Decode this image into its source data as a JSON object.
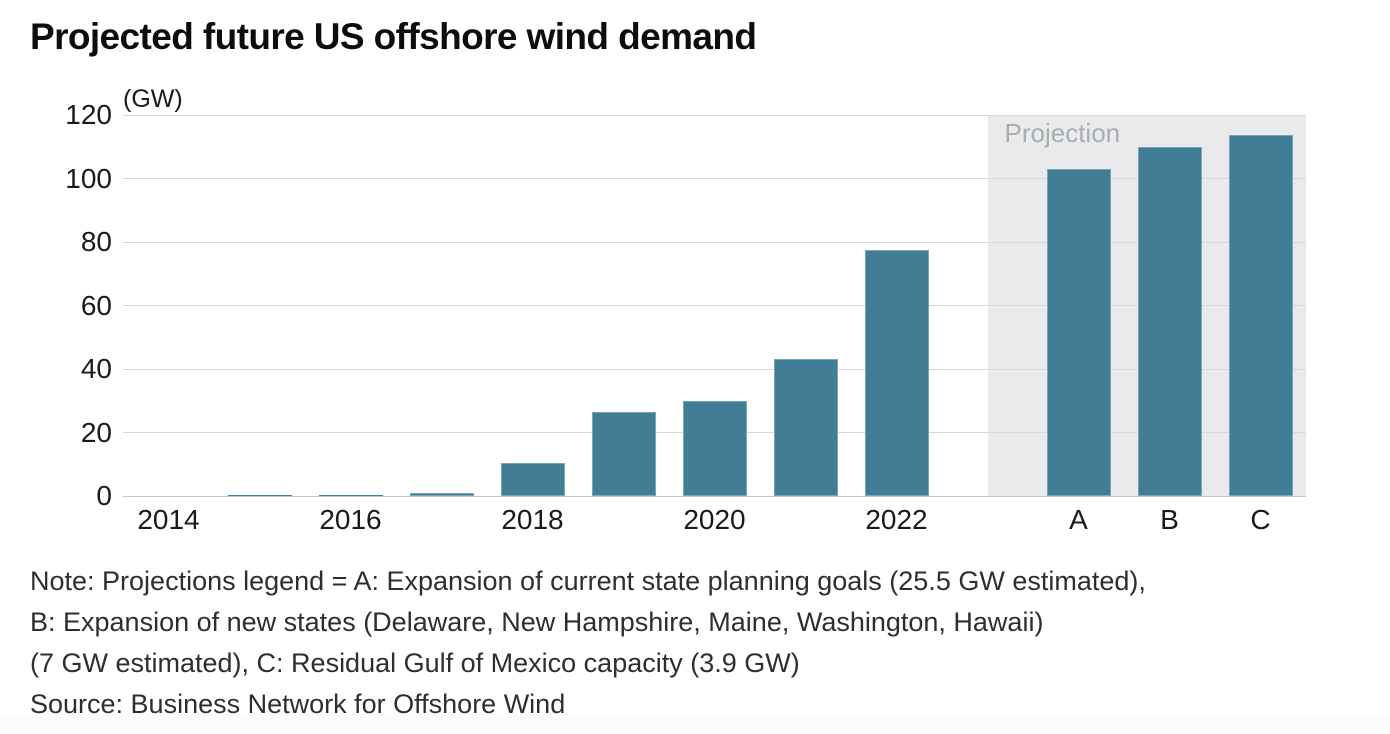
{
  "chart_data": {
    "type": "bar",
    "title": "Projected future US offshore wind demand",
    "unit_label": "(GW)",
    "xlabel": "",
    "ylabel": "GW",
    "ylim": [
      0,
      120
    ],
    "yticks": [
      0,
      20,
      40,
      60,
      80,
      100,
      120
    ],
    "grid": true,
    "categories": [
      "2014",
      "2015",
      "2016",
      "2017",
      "2018",
      "2019",
      "2020",
      "2021",
      "2022",
      "",
      "A",
      "B",
      "C"
    ],
    "values": [
      0,
      0.2,
      0.4,
      1,
      10.4,
      26.5,
      29.8,
      43,
      77.4,
      null,
      102.9,
      109.9,
      113.8
    ],
    "x_tick_labels": [
      "2014",
      "2016",
      "2018",
      "2020",
      "2022",
      "A",
      "B",
      "C"
    ],
    "projection_band": {
      "label": "Projection",
      "covers": [
        "A",
        "B",
        "C"
      ]
    },
    "legend_position": "none",
    "note_lines": [
      "Note: Projections legend = A: Expansion of current state planning goals (25.5 GW estimated),",
      "B: Expansion of new states (Delaware, New Hampshire, Maine, Washington, Hawaii)",
      "(7 GW estimated), C: Residual Gulf of Mexico capacity (3.9 GW)",
      "Source: Business Network for Offshore Wind"
    ],
    "colors": {
      "bar": "#417E95",
      "projection_band": "#E9EAEB",
      "projection_label_text": "#A9ADB0",
      "gridline": "#D8D8D8",
      "baseline": "#C6C6C6",
      "axis_text": "#1A1A1A",
      "title_text": "#0D0D0D",
      "note_text": "#2E2E2E"
    }
  }
}
